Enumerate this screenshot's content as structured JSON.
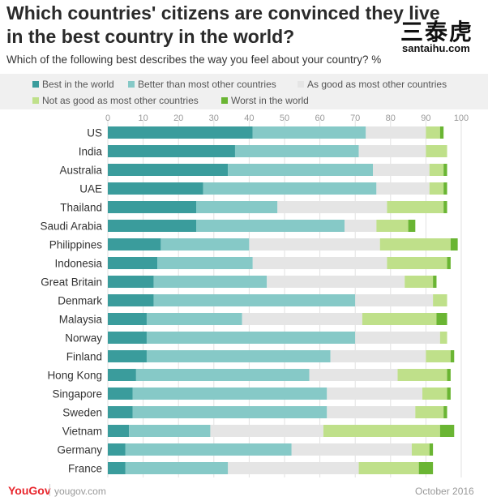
{
  "header": {
    "title": "Which countries' citizens are convinced they live in the best country in the world?",
    "subtitle": "Which of the following best describes the way you feel about your country? %"
  },
  "watermark": {
    "chinese": "三泰虎",
    "site": "santaihu.com"
  },
  "footer": {
    "logo": "YouGov",
    "url": "yougov.com",
    "date": "October 2016"
  },
  "colors": {
    "best": "#3a9c9c",
    "better": "#86c9c7",
    "as_good": "#e5e5e5",
    "not_as_good": "#bfe08a",
    "worst": "#6ab533"
  },
  "chart_data": {
    "type": "bar",
    "orientation": "horizontal",
    "stacked": true,
    "xlim": [
      0,
      100
    ],
    "x_ticks": [
      "0",
      "10",
      "20",
      "30",
      "40",
      "50",
      "60",
      "70",
      "80",
      "90",
      "100"
    ],
    "grid": true,
    "legend_position": "top",
    "categories": [
      "US",
      "India",
      "Australia",
      "UAE",
      "Thailand",
      "Saudi Arabia",
      "Philippines",
      "Indonesia",
      "Great Britain",
      "Denmark",
      "Malaysia",
      "Norway",
      "Finland",
      "Hong Kong",
      "Singapore",
      "Sweden",
      "Vietnam",
      "Germany",
      "France"
    ],
    "series": [
      {
        "name": "Best in the world",
        "color_key": "best",
        "values": [
          41,
          36,
          34,
          27,
          25,
          25,
          15,
          14,
          13,
          13,
          11,
          11,
          11,
          8,
          7,
          7,
          6,
          5,
          5
        ]
      },
      {
        "name": "Better than most other countries",
        "color_key": "better",
        "values": [
          32,
          35,
          41,
          49,
          23,
          42,
          25,
          27,
          32,
          57,
          27,
          59,
          52,
          49,
          55,
          55,
          23,
          47,
          29
        ]
      },
      {
        "name": "As good as most other countries",
        "color_key": "as_good",
        "values": [
          17,
          19,
          16,
          15,
          31,
          9,
          37,
          38,
          39,
          22,
          34,
          24,
          27,
          25,
          27,
          25,
          32,
          34,
          37
        ]
      },
      {
        "name": "Not as good as most other countries",
        "color_key": "not_as_good",
        "values": [
          4,
          6,
          4,
          4,
          16,
          9,
          20,
          17,
          8,
          4,
          21,
          2,
          7,
          14,
          7,
          8,
          33,
          5,
          17
        ]
      },
      {
        "name": "Worst in the world",
        "color_key": "worst",
        "values": [
          1,
          0,
          1,
          1,
          1,
          2,
          2,
          1,
          1,
          0,
          3,
          0,
          1,
          1,
          1,
          1,
          4,
          1,
          4
        ]
      }
    ]
  }
}
